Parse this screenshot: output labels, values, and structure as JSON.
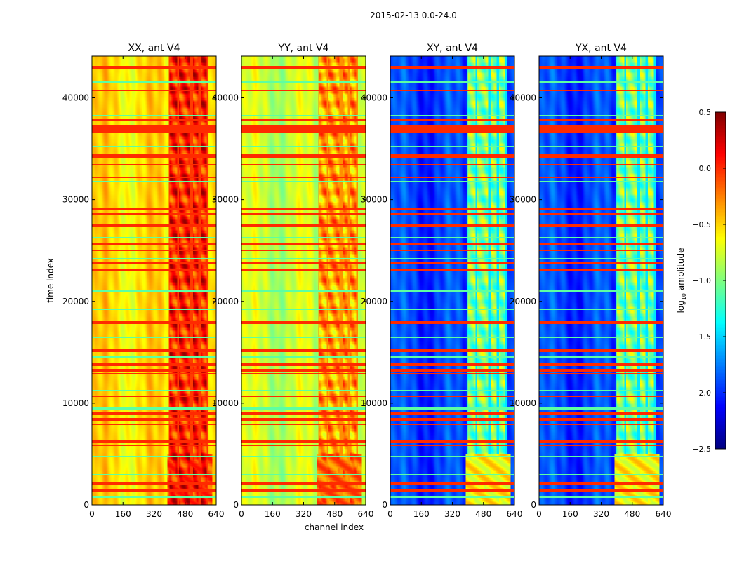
{
  "chart_data": {
    "type": "heatmap",
    "title": "2015-02-13 0.0-24.0",
    "xlabel": "channel index",
    "ylabel": "time index",
    "xlim": [
      0,
      640
    ],
    "ylim": [
      0,
      44100
    ],
    "xticks": [
      0,
      160,
      320,
      480,
      640
    ],
    "yticks": [
      0,
      10000,
      20000,
      30000,
      40000
    ],
    "colormap": "jet",
    "colorbar": {
      "label_main": "log",
      "label_sub": "10",
      "label_rest": " amplitude",
      "range": [
        -2.5,
        0.5
      ],
      "ticks": [
        "0.5",
        "0.0",
        "−0.5",
        "−1.0",
        "−1.5",
        "−2.0",
        "−2.5"
      ],
      "tick_values": [
        0.5,
        0.0,
        -0.5,
        -1.0,
        -1.5,
        -2.0,
        -2.5
      ]
    },
    "panels": [
      {
        "title": "XX, ant V4",
        "base_level": -0.55,
        "band_level": 0.05,
        "low_time_level": -0.1
      },
      {
        "title": "YY, ant V4",
        "base_level": -0.8,
        "band_level": -0.35,
        "low_time_level": -0.2
      },
      {
        "title": "XY, ant V4",
        "base_level": -1.95,
        "band_level": -1.0,
        "low_time_level": -0.6
      },
      {
        "title": "YX, ant V4",
        "base_level": -1.95,
        "band_level": -1.0,
        "low_time_level": -0.6
      }
    ],
    "rfi_band_channels": [
      [
        400,
        440
      ],
      [
        450,
        505
      ],
      [
        520,
        548
      ],
      [
        562,
        592
      ]
    ],
    "flagged_rows_time": [
      43100,
      42900,
      40690,
      37790,
      33450,
      32200,
      29100,
      28620,
      27450,
      25650,
      25030,
      23790,
      23100,
      17930,
      15170,
      13790,
      13240,
      12900,
      10690,
      8970,
      8410,
      7930,
      6210,
      5860,
      2070,
      1380
    ],
    "flagged_band_time": [
      [
        36500,
        37300
      ],
      [
        34100,
        34500
      ]
    ],
    "low_rows_time": [
      41500,
      38200,
      35200,
      31800,
      26200,
      24200,
      21000,
      19200,
      16500,
      14500,
      11200,
      9500,
      4700,
      3000,
      800
    ]
  }
}
